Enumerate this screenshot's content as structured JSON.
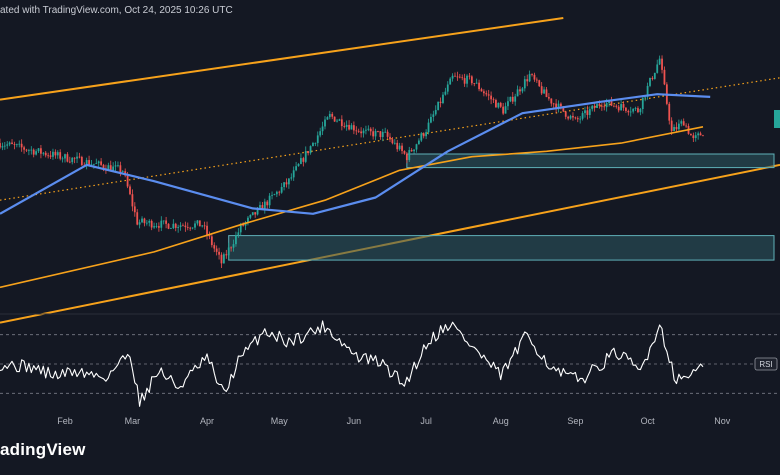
{
  "header": {
    "caption": "ated with TradingView.com, Oct 24, 2025 10:26 UTC"
  },
  "footer": {
    "brand": "adingView"
  },
  "colors": {
    "background": "#141823",
    "candle_up": "#26a69a",
    "candle_down": "#ef5350",
    "channel": "#f7a21b",
    "ma_fast": "#f7a21b",
    "ma_slow": "#5b8def",
    "zone_fill": "#2b5a63",
    "zone_border": "#5fb0b8",
    "rsi_line": "#ffffff",
    "rsi_levels": "#787b86"
  },
  "chart_data": [
    {
      "type": "candlestick",
      "title": "",
      "x_range": [
        "2025-01-05",
        "2025-11-25"
      ],
      "xaxis_ticks": [
        "Feb",
        "Mar",
        "Apr",
        "May",
        "Jun",
        "Jul",
        "Aug",
        "Sep",
        "Oct",
        "Nov"
      ],
      "price_range_normalized": [
        0,
        100
      ],
      "grid": false,
      "anchors": [
        {
          "date": "2025-01-05",
          "v": 54
        },
        {
          "date": "2025-01-25",
          "v": 50
        },
        {
          "date": "2025-02-05",
          "v": 48
        },
        {
          "date": "2025-02-25",
          "v": 44
        },
        {
          "date": "2025-03-03",
          "v": 25
        },
        {
          "date": "2025-03-15",
          "v": 24
        },
        {
          "date": "2025-03-30",
          "v": 24
        },
        {
          "date": "2025-04-07",
          "v": 10
        },
        {
          "date": "2025-04-15",
          "v": 23
        },
        {
          "date": "2025-05-05",
          "v": 40
        },
        {
          "date": "2025-05-22",
          "v": 64
        },
        {
          "date": "2025-06-05",
          "v": 58
        },
        {
          "date": "2025-06-14",
          "v": 57
        },
        {
          "date": "2025-06-23",
          "v": 49
        },
        {
          "date": "2025-07-01",
          "v": 59
        },
        {
          "date": "2025-07-12",
          "v": 78
        },
        {
          "date": "2025-07-20",
          "v": 77
        },
        {
          "date": "2025-08-02",
          "v": 66
        },
        {
          "date": "2025-08-13",
          "v": 79
        },
        {
          "date": "2025-08-20",
          "v": 71
        },
        {
          "date": "2025-09-01",
          "v": 62
        },
        {
          "date": "2025-09-12",
          "v": 69
        },
        {
          "date": "2025-09-27",
          "v": 66
        },
        {
          "date": "2025-10-06",
          "v": 85
        },
        {
          "date": "2025-10-11",
          "v": 58
        },
        {
          "date": "2025-10-16",
          "v": 62
        },
        {
          "date": "2025-10-20",
          "v": 55
        },
        {
          "date": "2025-10-24",
          "v": 58
        }
      ],
      "moving_average_slow": [
        {
          "date": "2025-01-05",
          "v": 28
        },
        {
          "date": "2025-02-10",
          "v": 46
        },
        {
          "date": "2025-03-10",
          "v": 40
        },
        {
          "date": "2025-04-20",
          "v": 30
        },
        {
          "date": "2025-05-15",
          "v": 28
        },
        {
          "date": "2025-06-10",
          "v": 34
        },
        {
          "date": "2025-07-10",
          "v": 51
        },
        {
          "date": "2025-08-10",
          "v": 65
        },
        {
          "date": "2025-09-10",
          "v": 69
        },
        {
          "date": "2025-10-05",
          "v": 72
        },
        {
          "date": "2025-10-27",
          "v": 71
        }
      ],
      "moving_average_fast": [
        {
          "date": "2025-01-05",
          "v": 1
        },
        {
          "date": "2025-03-10",
          "v": 14
        },
        {
          "date": "2025-04-15",
          "v": 24
        },
        {
          "date": "2025-05-20",
          "v": 33
        },
        {
          "date": "2025-06-20",
          "v": 44
        },
        {
          "date": "2025-07-20",
          "v": 49
        },
        {
          "date": "2025-08-20",
          "v": 51
        },
        {
          "date": "2025-09-20",
          "v": 54
        },
        {
          "date": "2025-10-24",
          "v": 60
        }
      ],
      "channel": {
        "upper": [
          {
            "date": "2025-01-05",
            "v": 70
          },
          {
            "date": "2025-08-27",
            "v": 100
          }
        ],
        "middle_dotted": [
          {
            "date": "2025-01-05",
            "v": 33
          },
          {
            "date": "2025-11-25",
            "v": 78
          }
        ],
        "lower": [
          {
            "date": "2025-01-05",
            "v": -12
          },
          {
            "date": "2025-11-25",
            "v": 46
          }
        ]
      },
      "zones": [
        {
          "from": "2025-06-23",
          "to": "2025-11-25",
          "v_low": 45,
          "v_high": 50
        },
        {
          "from": "2025-04-10",
          "to": "2025-11-25",
          "v_low": 11,
          "v_high": 20
        }
      ]
    },
    {
      "type": "line",
      "title": "",
      "series_label": "RSI",
      "y_range": [
        20,
        80
      ],
      "levels": [
        70,
        50,
        30
      ],
      "series": [
        {
          "values": [
            {
              "date": "2025-01-05",
              "v": 50
            },
            {
              "date": "2025-01-18",
              "v": 48
            },
            {
              "date": "2025-01-28",
              "v": 42
            },
            {
              "date": "2025-02-05",
              "v": 45
            },
            {
              "date": "2025-02-18",
              "v": 41
            },
            {
              "date": "2025-02-28",
              "v": 58
            },
            {
              "date": "2025-03-04",
              "v": 24
            },
            {
              "date": "2025-03-12",
              "v": 46
            },
            {
              "date": "2025-03-20",
              "v": 34
            },
            {
              "date": "2025-04-01",
              "v": 54
            },
            {
              "date": "2025-04-08",
              "v": 29
            },
            {
              "date": "2025-04-14",
              "v": 52
            },
            {
              "date": "2025-04-25",
              "v": 73
            },
            {
              "date": "2025-05-05",
              "v": 65
            },
            {
              "date": "2025-05-20",
              "v": 76
            },
            {
              "date": "2025-06-02",
              "v": 55
            },
            {
              "date": "2025-06-12",
              "v": 51
            },
            {
              "date": "2025-06-22",
              "v": 36
            },
            {
              "date": "2025-07-02",
              "v": 66
            },
            {
              "date": "2025-07-11",
              "v": 78
            },
            {
              "date": "2025-07-20",
              "v": 62
            },
            {
              "date": "2025-08-01",
              "v": 42
            },
            {
              "date": "2025-08-12",
              "v": 70
            },
            {
              "date": "2025-08-23",
              "v": 45
            },
            {
              "date": "2025-09-03",
              "v": 39
            },
            {
              "date": "2025-09-18",
              "v": 58
            },
            {
              "date": "2025-09-28",
              "v": 45
            },
            {
              "date": "2025-10-06",
              "v": 77
            },
            {
              "date": "2025-10-13",
              "v": 38
            },
            {
              "date": "2025-10-20",
              "v": 45
            },
            {
              "date": "2025-10-24",
              "v": 47
            }
          ]
        }
      ]
    }
  ]
}
